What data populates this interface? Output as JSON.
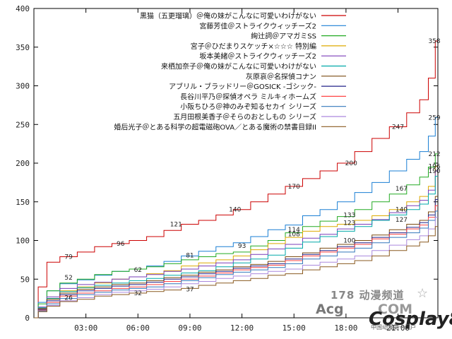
{
  "chart_data": {
    "type": "line",
    "title": "",
    "xlabel": "",
    "ylabel": "",
    "ylim": [
      0,
      400
    ],
    "xlim": [
      0,
      23.3
    ],
    "yticks": [
      0,
      50,
      100,
      150,
      200,
      250,
      300,
      350,
      400
    ],
    "xticks": [
      {
        "value": 3,
        "label": "03:00"
      },
      {
        "value": 6,
        "label": "06:00"
      },
      {
        "value": 9,
        "label": "09:00"
      },
      {
        "value": 12,
        "label": "12:00"
      },
      {
        "value": 15,
        "label": "15:00"
      },
      {
        "value": 18,
        "label": "18:00"
      },
      {
        "value": 21,
        "label": "21:00"
      }
    ],
    "grid": false,
    "legend_position": "top-right",
    "x": [
      0,
      0.5,
      1,
      2,
      3,
      4,
      5,
      6,
      7,
      8,
      9,
      10,
      11,
      12,
      13,
      14,
      15,
      16,
      17,
      18,
      19,
      20,
      21,
      22,
      22.5,
      23,
      23.3
    ],
    "series": [
      {
        "name": "黒猫（五更瑠璃）＠俺の妹がこんなに可愛いわけがない",
        "color": "#cc0000",
        "values": [
          0,
          40,
          72,
          79,
          85,
          92,
          96,
          100,
          105,
          113,
          121,
          126,
          133,
          140,
          150,
          160,
          170,
          180,
          190,
          200,
          215,
          232,
          247,
          265,
          282,
          310,
          358
        ]
      },
      {
        "name": "宮藤芳佳＠ストライクウィッチーズ2",
        "color": "#1a7fd4",
        "values": [
          0,
          20,
          35,
          44,
          49,
          55,
          60,
          63,
          67,
          73,
          80,
          86,
          92,
          97,
          105,
          114,
          120,
          132,
          140,
          150,
          162,
          175,
          190,
          205,
          215,
          235,
          259
        ]
      },
      {
        "name": "絢辻詞＠アマガミSS",
        "color": "#22aa22",
        "values": [
          0,
          18,
          35,
          45,
          50,
          56,
          60,
          63,
          66,
          70,
          75,
          79,
          83,
          85,
          93,
          100,
          110,
          118,
          125,
          131,
          140,
          150,
          160,
          172,
          182,
          195,
          212
        ]
      },
      {
        "name": "宮子＠ひだまりスケッチ×☆☆☆ 特別編",
        "color": "#ddaa00",
        "values": [
          0,
          12,
          25,
          35,
          40,
          45,
          50,
          53,
          57,
          61,
          67,
          71,
          75,
          80,
          88,
          96,
          104,
          112,
          118,
          121,
          126,
          132,
          140,
          150,
          157,
          170,
          196
        ]
      },
      {
        "name": "坂本美緒＠ストライクウィッチーズ2",
        "color": "#7a3db8",
        "values": [
          0,
          14,
          27,
          38,
          43,
          46,
          50,
          53,
          56,
          60,
          63,
          67,
          71,
          75,
          82,
          89,
          95,
          103,
          108,
          115,
          121,
          127,
          136,
          145,
          152,
          165,
          190
        ]
      },
      {
        "name": "来栖加奈子＠俺の妹がこんなに可愛いわけがない",
        "color": "#00a8a8",
        "values": [
          0,
          13,
          25,
          34,
          39,
          42,
          45,
          48,
          51,
          55,
          58,
          61,
          66,
          71,
          76,
          81,
          90,
          98,
          105,
          112,
          118,
          126,
          133,
          140,
          147,
          160,
          183
        ]
      },
      {
        "name": "灰原哀＠名探偵コナン",
        "color": "#7a4a10",
        "values": [
          0,
          12,
          24,
          32,
          37,
          40,
          43,
          45,
          48,
          52,
          55,
          59,
          62,
          66,
          69,
          73,
          79,
          84,
          90,
          95,
          100,
          107,
          114,
          121,
          126,
          137,
          157
        ]
      },
      {
        "name": "アブリル・ブラッドリー＠GOSICK -ゴシック-",
        "color": "#222288",
        "values": [
          0,
          11,
          22,
          30,
          35,
          38,
          41,
          43,
          46,
          50,
          53,
          57,
          60,
          64,
          67,
          70,
          76,
          82,
          87,
          92,
          97,
          104,
          110,
          117,
          123,
          133,
          153
        ]
      },
      {
        "name": "長谷川平乃＠探偵オペラ ミルキィホームズ",
        "color": "#ff4444",
        "values": [
          0,
          10,
          20,
          28,
          32,
          35,
          38,
          40,
          43,
          47,
          50,
          54,
          58,
          62,
          65,
          68,
          74,
          80,
          85,
          90,
          95,
          102,
          108,
          115,
          120,
          130,
          145
        ]
      },
      {
        "name": "小阪ちひろ＠神のみぞ知るセカイ シリーズ",
        "color": "#3377bb",
        "values": [
          0,
          9,
          18,
          25,
          30,
          33,
          36,
          38,
          40,
          44,
          48,
          52,
          56,
          59,
          62,
          65,
          70,
          76,
          80,
          85,
          90,
          97,
          104,
          110,
          116,
          126,
          138
        ]
      },
      {
        "name": "五月田根美香子＠そらのおとしもの シリーズ",
        "color": "#aa88dd",
        "values": [
          0,
          8,
          16,
          22,
          26,
          30,
          33,
          35,
          37,
          40,
          44,
          47,
          51,
          54,
          57,
          60,
          63,
          68,
          72,
          76,
          80,
          87,
          94,
          101,
          106,
          115,
          130
        ]
      },
      {
        "name": "婚后光子＠とある科学の超電磁砲OVA／とある魔術の禁書目録II",
        "color": "#8a5a20",
        "values": [
          0,
          8,
          15,
          21,
          24,
          28,
          30,
          32,
          34,
          36,
          38,
          42,
          45,
          48,
          51,
          55,
          57,
          62,
          66,
          70,
          74,
          80,
          87,
          93,
          98,
          106,
          118
        ]
      }
    ],
    "annotations": [
      {
        "x": 2,
        "y": 79,
        "text": "79"
      },
      {
        "x": 5,
        "y": 96,
        "text": "96"
      },
      {
        "x": 8.2,
        "y": 121,
        "text": "121"
      },
      {
        "x": 11.6,
        "y": 140,
        "text": "140"
      },
      {
        "x": 15,
        "y": 170,
        "text": "170"
      },
      {
        "x": 18.3,
        "y": 200,
        "text": "200"
      },
      {
        "x": 21,
        "y": 247,
        "text": "247"
      },
      {
        "x": 23.1,
        "y": 358,
        "text": "358"
      },
      {
        "x": 23.1,
        "y": 259,
        "text": "259"
      },
      {
        "x": 23.1,
        "y": 212,
        "text": "212"
      },
      {
        "x": 23.1,
        "y": 196,
        "text": "196"
      },
      {
        "x": 23.1,
        "y": 190,
        "text": "190"
      },
      {
        "x": 21.2,
        "y": 167,
        "text": "167"
      },
      {
        "x": 21.2,
        "y": 140,
        "text": "140"
      },
      {
        "x": 21.2,
        "y": 127,
        "text": "127"
      },
      {
        "x": 18.2,
        "y": 133,
        "text": "133"
      },
      {
        "x": 18.2,
        "y": 123,
        "text": "123"
      },
      {
        "x": 15,
        "y": 114,
        "text": "114"
      },
      {
        "x": 15,
        "y": 108,
        "text": "108"
      },
      {
        "x": 18.2,
        "y": 100,
        "text": "100"
      },
      {
        "x": 12,
        "y": 93,
        "text": "93"
      },
      {
        "x": 9,
        "y": 81,
        "text": "81"
      },
      {
        "x": 6,
        "y": 62,
        "text": "62"
      },
      {
        "x": 2,
        "y": 52,
        "text": "52"
      },
      {
        "x": 2,
        "y": 26,
        "text": "26"
      },
      {
        "x": 6,
        "y": 32,
        "text": "32"
      },
      {
        "x": 9,
        "y": 37,
        "text": "37"
      }
    ]
  },
  "watermark": {
    "line1": "178 动漫频道",
    "line2": "Acg",
    "line3": "COM",
    "brand": "Cosplay8",
    "brand_sub": "中国动漫第一门户"
  }
}
